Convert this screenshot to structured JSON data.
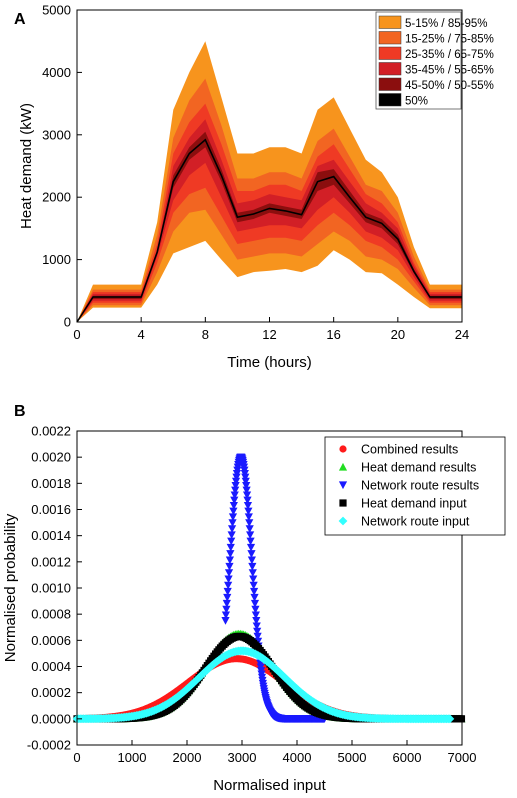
{
  "chart_data": [
    {
      "type": "area",
      "panel_label": "A",
      "xlabel": "Time (hours)",
      "ylabel": "Heat demand (kW)",
      "xlim": [
        0,
        24
      ],
      "ylim": [
        0,
        5000
      ],
      "xticks": [
        0,
        4,
        8,
        12,
        16,
        20,
        24
      ],
      "yticks": [
        0,
        1000,
        2000,
        3000,
        4000,
        5000
      ],
      "legend_position": "top-right",
      "x": [
        0,
        1,
        2,
        3,
        4,
        5,
        6,
        7,
        8,
        9,
        10,
        11,
        12,
        13,
        14,
        15,
        16,
        17,
        18,
        19,
        20,
        21,
        22,
        23,
        24
      ],
      "bands": [
        {
          "name": "5-15% / 85-95%",
          "color": "#f7941d",
          "lower": [
            0,
            230,
            230,
            230,
            230,
            600,
            1100,
            1200,
            1300,
            1000,
            720,
            800,
            820,
            850,
            800,
            900,
            1150,
            1000,
            800,
            780,
            600,
            400,
            220,
            220,
            220
          ],
          "upper": [
            0,
            600,
            600,
            600,
            600,
            1600,
            3400,
            4000,
            4500,
            3600,
            2700,
            2700,
            2800,
            2800,
            2700,
            3400,
            3600,
            3100,
            2600,
            2400,
            2000,
            1200,
            600,
            600,
            600
          ]
        },
        {
          "name": "15-25% / 75-85%",
          "color": "#f26522",
          "lower": [
            0,
            270,
            270,
            270,
            270,
            800,
            1450,
            1750,
            1800,
            1400,
            1000,
            1050,
            1100,
            1100,
            1050,
            1250,
            1450,
            1300,
            1050,
            1000,
            850,
            550,
            270,
            270,
            270
          ],
          "upper": [
            0,
            520,
            520,
            520,
            520,
            1400,
            2950,
            3550,
            3900,
            3150,
            2300,
            2300,
            2400,
            2400,
            2300,
            2900,
            3100,
            2650,
            2200,
            2100,
            1750,
            1050,
            520,
            520,
            520
          ]
        },
        {
          "name": "25-35% / 65-75%",
          "color": "#ef3a24",
          "lower": [
            0,
            310,
            310,
            310,
            310,
            950,
            1750,
            2050,
            2150,
            1700,
            1250,
            1300,
            1350,
            1350,
            1300,
            1550,
            1750,
            1550,
            1300,
            1200,
            1000,
            650,
            310,
            310,
            310
          ],
          "upper": [
            0,
            480,
            480,
            480,
            480,
            1250,
            2700,
            3200,
            3500,
            2850,
            2100,
            2100,
            2200,
            2200,
            2100,
            2650,
            2850,
            2450,
            2050,
            1900,
            1600,
            950,
            480,
            480,
            480
          ]
        },
        {
          "name": "35-45% / 55-65%",
          "color": "#d21f26",
          "lower": [
            0,
            340,
            340,
            340,
            340,
            1050,
            1950,
            2350,
            2550,
            2000,
            1450,
            1500,
            1550,
            1550,
            1500,
            1800,
            2000,
            1750,
            1450,
            1350,
            1150,
            720,
            340,
            340,
            340
          ],
          "upper": [
            0,
            450,
            450,
            450,
            450,
            1150,
            2500,
            2950,
            3250,
            2600,
            1900,
            1950,
            2050,
            2000,
            1950,
            2500,
            2600,
            2250,
            1900,
            1750,
            1500,
            900,
            450,
            450,
            450
          ]
        },
        {
          "name": "45-50% / 50-55%",
          "color": "#8b0e0e",
          "lower": [
            0,
            370,
            370,
            370,
            370,
            1100,
            2150,
            2600,
            2800,
            2250,
            1600,
            1650,
            1750,
            1700,
            1650,
            2100,
            2200,
            1900,
            1600,
            1500,
            1250,
            780,
            370,
            370,
            370
          ],
          "upper": [
            0,
            420,
            420,
            420,
            420,
            1120,
            2350,
            2800,
            3050,
            2450,
            1750,
            1800,
            1900,
            1850,
            1800,
            2400,
            2450,
            2100,
            1750,
            1650,
            1400,
            850,
            420,
            420,
            420
          ]
        }
      ],
      "series": [
        {
          "name": "50%",
          "color": "#000000",
          "values": [
            0,
            400,
            400,
            400,
            400,
            1120,
            2250,
            2700,
            2920,
            2350,
            1680,
            1730,
            1820,
            1780,
            1720,
            2250,
            2330,
            2000,
            1680,
            1580,
            1330,
            810,
            400,
            400,
            400
          ]
        }
      ]
    },
    {
      "type": "scatter",
      "panel_label": "B",
      "xlabel": "Normalised input",
      "ylabel": "Normalised probability",
      "xlim": [
        0,
        7000
      ],
      "ylim": [
        -0.0002,
        0.0022
      ],
      "xticks": [
        0,
        1000,
        2000,
        3000,
        4000,
        5000,
        6000,
        7000
      ],
      "yticks": [
        "-0.0002",
        "0.0000",
        "0.0002",
        "0.0004",
        "0.0006",
        "0.0008",
        "0.0010",
        "0.0012",
        "0.0014",
        "0.0016",
        "0.0018",
        "0.0020",
        "0.0022"
      ],
      "legend_position": "top-right",
      "series": [
        {
          "name": "Combined results",
          "marker": "circle",
          "color": "#ff1a1a",
          "mean": 2900,
          "sd": 870,
          "peak": 0.00046,
          "xmin": 0,
          "xmax": 7000
        },
        {
          "name": "Heat demand results",
          "marker": "triangle-up",
          "color": "#22dd22",
          "mean": 2950,
          "sd": 620,
          "peak": 0.00065,
          "xmin": 0,
          "xmax": 7000
        },
        {
          "name": "Network route results",
          "marker": "triangle-down",
          "color": "#1a1aff",
          "mean": 2980,
          "sd": 200,
          "peak": 0.002,
          "xmin": 2700,
          "xmax": 4500
        },
        {
          "name": "Heat demand input",
          "marker": "square",
          "color": "#000000",
          "mean": 2950,
          "sd": 620,
          "peak": 0.00063,
          "xmin": 0,
          "xmax": 7000
        },
        {
          "name": "Network route input",
          "marker": "diamond",
          "color": "#33ffff",
          "mean": 3000,
          "sd": 780,
          "peak": 0.00052,
          "xmin": 0,
          "xmax": 6800
        }
      ]
    }
  ]
}
